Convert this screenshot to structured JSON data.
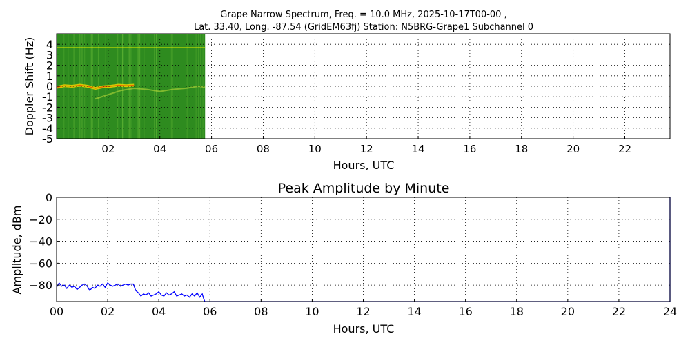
{
  "chart_data": [
    {
      "type": "heatmap",
      "title": "Grape Narrow Spectrum, Freq. = 10.0 MHz, 2025-10-17T00-00 ,",
      "subtitle": "Lat.  33.40, Long. -87.54 (GridEM63fj) Station: N5BRG-Grape1 Subchannel 0",
      "xlabel": "Hours, UTC",
      "ylabel": "Doppler Shift (Hz)",
      "xlim": [
        0,
        23.75
      ],
      "ylim": [
        -5,
        5
      ],
      "xticks": [
        2,
        4,
        6,
        8,
        10,
        12,
        14,
        16,
        18,
        20,
        22
      ],
      "xtick_labels": [
        "02",
        "04",
        "06",
        "08",
        "10",
        "12",
        "14",
        "16",
        "18",
        "20",
        "22"
      ],
      "yticks": [
        4,
        3,
        2,
        1,
        0,
        -1,
        -2,
        -3,
        -4,
        -5
      ],
      "ytick_labels": [
        "4",
        "3",
        "2",
        "1",
        "0",
        "-1",
        "-2",
        "-3",
        "-4",
        "-5"
      ],
      "data_extent_hours": [
        0,
        5.75
      ],
      "background_color": "#2e8b1f",
      "grid": true,
      "trace": {
        "name": "",
        "color": "#e8d000",
        "x": [
          0.0,
          0.3,
          0.6,
          0.9,
          1.2,
          1.5,
          1.8,
          2.1,
          2.4,
          2.7,
          3.0
        ],
        "y": [
          -0.1,
          0.05,
          0.0,
          0.1,
          0.0,
          -0.2,
          -0.05,
          0.0,
          0.1,
          0.05,
          0.1
        ]
      },
      "secondary_trace": {
        "x": [
          1.5,
          2.0,
          2.5,
          3.0,
          3.5,
          4.0,
          4.5,
          5.0,
          5.5,
          5.75
        ],
        "y": [
          -1.2,
          -0.8,
          -0.4,
          -0.2,
          -0.3,
          -0.5,
          -0.3,
          -0.2,
          0.0,
          -0.1
        ]
      }
    },
    {
      "type": "line",
      "title": "Peak Amplitude by Minute",
      "xlabel": "Hours, UTC",
      "ylabel": "Amplitude, dBm",
      "xlim": [
        0,
        24
      ],
      "ylim": [
        -95,
        0
      ],
      "xticks": [
        0,
        2,
        4,
        6,
        8,
        10,
        12,
        14,
        16,
        18,
        20,
        22,
        24
      ],
      "xtick_labels": [
        "00",
        "02",
        "04",
        "06",
        "08",
        "10",
        "12",
        "14",
        "16",
        "18",
        "20",
        "22",
        "24"
      ],
      "yticks": [
        0,
        -20,
        -40,
        -60,
        -80
      ],
      "ytick_labels": [
        "0",
        "−20",
        "−40",
        "−60",
        "−80"
      ],
      "grid": true,
      "series": [
        {
          "name": "",
          "color": "#0000ff",
          "x": [
            0.0,
            0.1,
            0.2,
            0.3,
            0.4,
            0.5,
            0.6,
            0.7,
            0.8,
            0.9,
            1.0,
            1.1,
            1.2,
            1.3,
            1.4,
            1.5,
            1.6,
            1.7,
            1.8,
            1.9,
            2.0,
            2.1,
            2.2,
            2.3,
            2.4,
            2.5,
            2.6,
            2.7,
            2.8,
            2.9,
            3.0,
            3.1,
            3.2,
            3.3,
            3.4,
            3.5,
            3.6,
            3.7,
            3.8,
            3.9,
            4.0,
            4.1,
            4.2,
            4.3,
            4.4,
            4.5,
            4.6,
            4.7,
            4.8,
            4.9,
            5.0,
            5.1,
            5.2,
            5.3,
            5.4,
            5.5,
            5.6,
            5.7,
            5.75,
            5.8,
            24.0,
            24.0
          ],
          "y": [
            -82,
            -78,
            -81,
            -80,
            -83,
            -80,
            -82,
            -81,
            -84,
            -82,
            -80,
            -79,
            -81,
            -85,
            -82,
            -83,
            -80,
            -81,
            -79,
            -82,
            -78,
            -80,
            -81,
            -80,
            -79,
            -81,
            -80,
            -79,
            -80,
            -79,
            -79,
            -85,
            -87,
            -90,
            -88,
            -89,
            -87,
            -90,
            -89,
            -88,
            -86,
            -89,
            -90,
            -87,
            -89,
            -88,
            -86,
            -90,
            -89,
            -88,
            -90,
            -89,
            -91,
            -88,
            -90,
            -87,
            -91,
            -88,
            -92,
            -95,
            -95,
            0
          ]
        }
      ]
    }
  ]
}
